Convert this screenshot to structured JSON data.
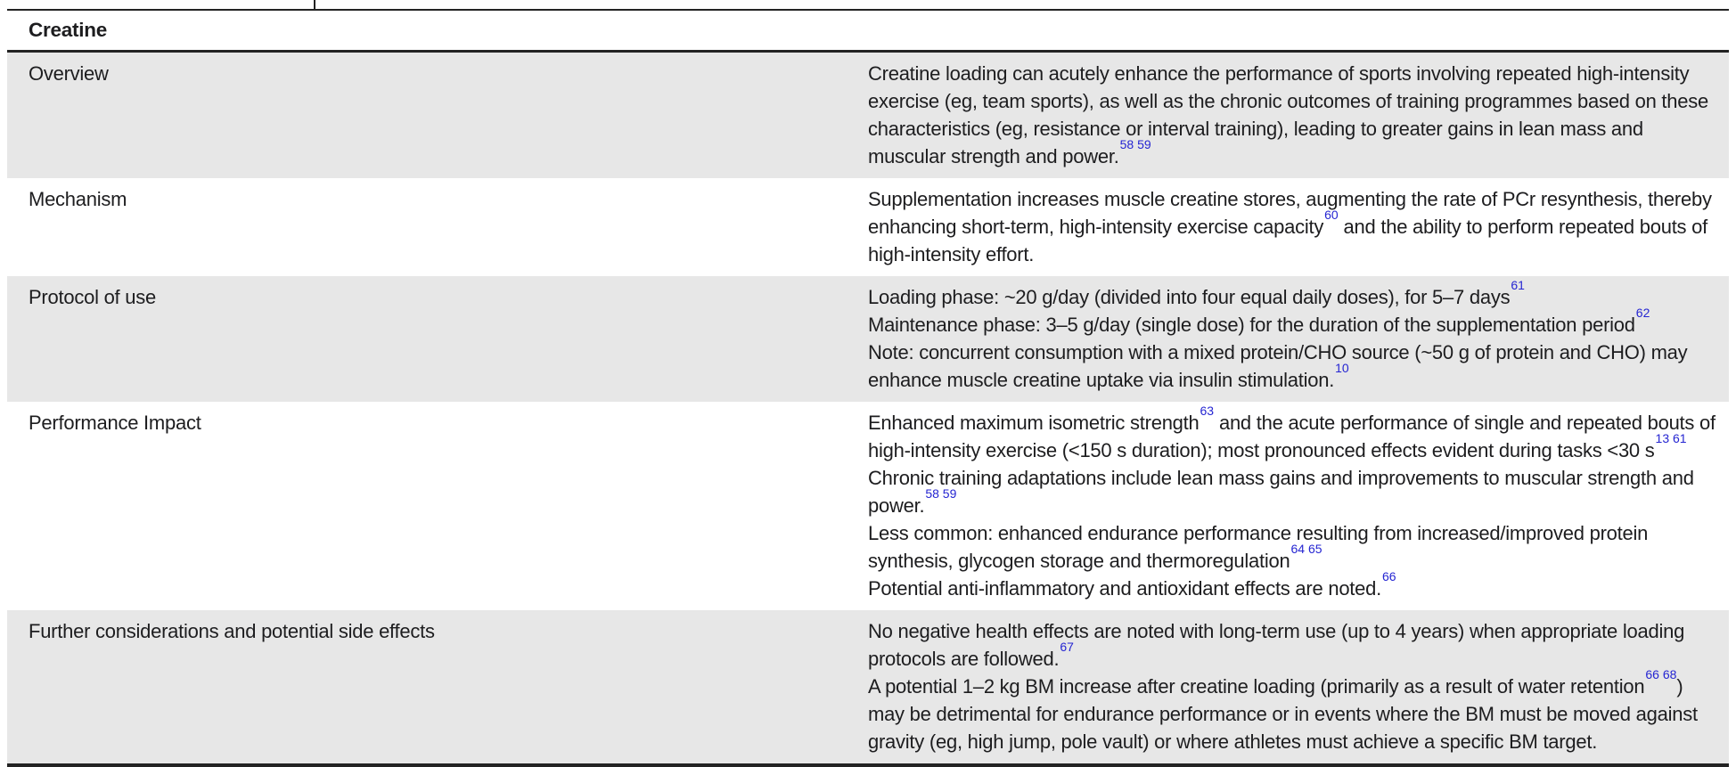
{
  "colors": {
    "reference_blue": "#2525d2",
    "row_shade": "#e7e7e7",
    "rule_black": "#232323",
    "text_black": "#1d1d1f"
  },
  "table": {
    "title": "Creatine",
    "rows": [
      {
        "label": "Overview",
        "shaded": true,
        "paragraphs": [
          [
            {
              "text": "Creatine loading can acutely enhance the performance of sports involving repeated high-intensity exercise (eg, team sports), as well as the chronic outcomes of training programmes based on these characteristics (eg, resistance or interval training), leading to greater gains in lean mass and muscular strength and power.",
              "sup": false
            },
            {
              "text": "58 59",
              "sup": true
            }
          ]
        ]
      },
      {
        "label": "Mechanism",
        "shaded": false,
        "paragraphs": [
          [
            {
              "text": "Supplementation increases muscle creatine stores, augmenting the rate of PCr resynthesis, thereby enhancing short-term, high-intensity exercise capacity",
              "sup": false
            },
            {
              "text": "60",
              "sup": true
            },
            {
              "text": " and the ability to perform repeated bouts of high-intensity effort.",
              "sup": false
            }
          ]
        ]
      },
      {
        "label": "Protocol of use",
        "shaded": true,
        "paragraphs": [
          [
            {
              "text": "Loading phase: ~20 g/day (divided into four equal daily doses), for 5–7 days",
              "sup": false
            },
            {
              "text": "61",
              "sup": true
            }
          ],
          [
            {
              "text": "Maintenance phase: 3–5 g/day (single dose) for the duration of the supplementation period",
              "sup": false
            },
            {
              "text": "62",
              "sup": true
            }
          ],
          [
            {
              "text": "Note: concurrent consumption with a mixed protein/CHO source (~50 g of protein and CHO) may enhance muscle creatine uptake via insulin stimulation.",
              "sup": false
            },
            {
              "text": "10",
              "sup": true
            }
          ]
        ]
      },
      {
        "label": "Performance Impact",
        "shaded": false,
        "paragraphs": [
          [
            {
              "text": "Enhanced maximum isometric strength",
              "sup": false
            },
            {
              "text": "63",
              "sup": true
            },
            {
              "text": " and the acute performance of single and repeated bouts of high-intensity exercise (<150 s duration); most pronounced effects evident during tasks <30 s",
              "sup": false
            },
            {
              "text": "13 61",
              "sup": true
            }
          ],
          [
            {
              "text": "Chronic training adaptations include lean mass gains and improvements to muscular strength and power.",
              "sup": false
            },
            {
              "text": "58 59",
              "sup": true
            }
          ],
          [
            {
              "text": "Less common: enhanced endurance performance resulting from increased/improved protein synthesis, glycogen storage and thermoregulation",
              "sup": false
            },
            {
              "text": "64 65",
              "sup": true
            }
          ],
          [
            {
              "text": "Potential anti-inflammatory and antioxidant effects are noted.",
              "sup": false
            },
            {
              "text": "66",
              "sup": true
            }
          ]
        ]
      },
      {
        "label": "Further considerations and potential side effects",
        "shaded": true,
        "paragraphs": [
          [
            {
              "text": "No negative health effects are noted with long-term use (up to 4 years) when appropriate loading protocols are followed.",
              "sup": false
            },
            {
              "text": "67",
              "sup": true
            }
          ],
          [
            {
              "text": "A potential 1–2 kg BM increase after creatine loading (primarily as a result of water retention",
              "sup": false
            },
            {
              "text": "66 68",
              "sup": true
            },
            {
              "text": ") may be detrimental for endurance performance or in events where the BM must be moved against gravity (eg, high jump, pole vault) or where athletes must achieve a specific BM target.",
              "sup": false
            }
          ]
        ]
      }
    ]
  }
}
